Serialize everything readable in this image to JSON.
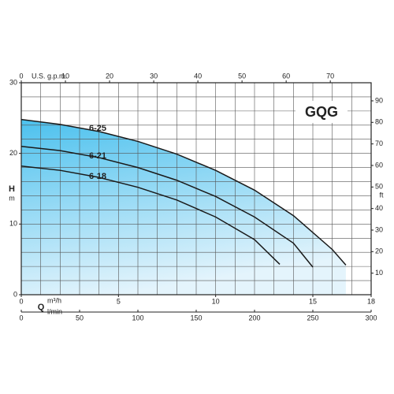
{
  "chart_data": {
    "type": "line",
    "title": "GQG",
    "ylabel": "H",
    "ylabel_unit": "m",
    "y2label": "ft",
    "xlabel": "Q",
    "xlabel_unit": "m³/h",
    "x2label_unit": "l/min",
    "x3label_unit": "U.S. g.p.m.",
    "xlim": [
      0,
      18
    ],
    "xticks": [
      0,
      5,
      10,
      15,
      18
    ],
    "ylim": [
      0,
      30
    ],
    "yticks": [
      0,
      10,
      20,
      30
    ],
    "y2lim": [
      0,
      98.4
    ],
    "y2ticks": [
      10,
      20,
      30,
      40,
      50,
      60,
      70,
      80,
      90
    ],
    "x2lim": [
      0,
      300
    ],
    "x2ticks": [
      0,
      50,
      100,
      150,
      200,
      250,
      300
    ],
    "x3lim": [
      0,
      79.25
    ],
    "x3ticks": [
      0,
      10,
      20,
      30,
      40,
      50,
      60,
      70
    ],
    "xgrid": [
      1,
      2,
      3,
      4,
      5,
      6,
      7,
      8,
      9,
      10,
      11,
      12,
      13,
      14,
      15,
      16,
      17
    ],
    "ygrid": [
      2,
      4,
      6,
      8,
      10,
      12,
      14,
      16,
      18,
      20,
      22,
      24,
      26,
      28
    ],
    "fill_color": "#4cc1ee",
    "series": [
      {
        "name": "6-25",
        "color": "#1a1a1a",
        "x": [
          0,
          2,
          4,
          6,
          8,
          10,
          12,
          14,
          16,
          16.7
        ],
        "values": [
          24.8,
          24.1,
          23.1,
          21.7,
          19.9,
          17.6,
          14.8,
          11.2,
          6.4,
          4.2
        ]
      },
      {
        "name": "6-21",
        "color": "#1a1a1a",
        "x": [
          0,
          2,
          4,
          6,
          8,
          10,
          12,
          14,
          15
        ],
        "values": [
          21,
          20.4,
          19.4,
          18,
          16.2,
          13.9,
          11,
          7.3,
          3.9
        ]
      },
      {
        "name": "6-18",
        "color": "#1a1a1a",
        "x": [
          0,
          2,
          4,
          6,
          8,
          10,
          12,
          13.3
        ],
        "values": [
          18.2,
          17.6,
          16.6,
          15.2,
          13.4,
          11,
          7.8,
          4.3
        ]
      }
    ]
  }
}
